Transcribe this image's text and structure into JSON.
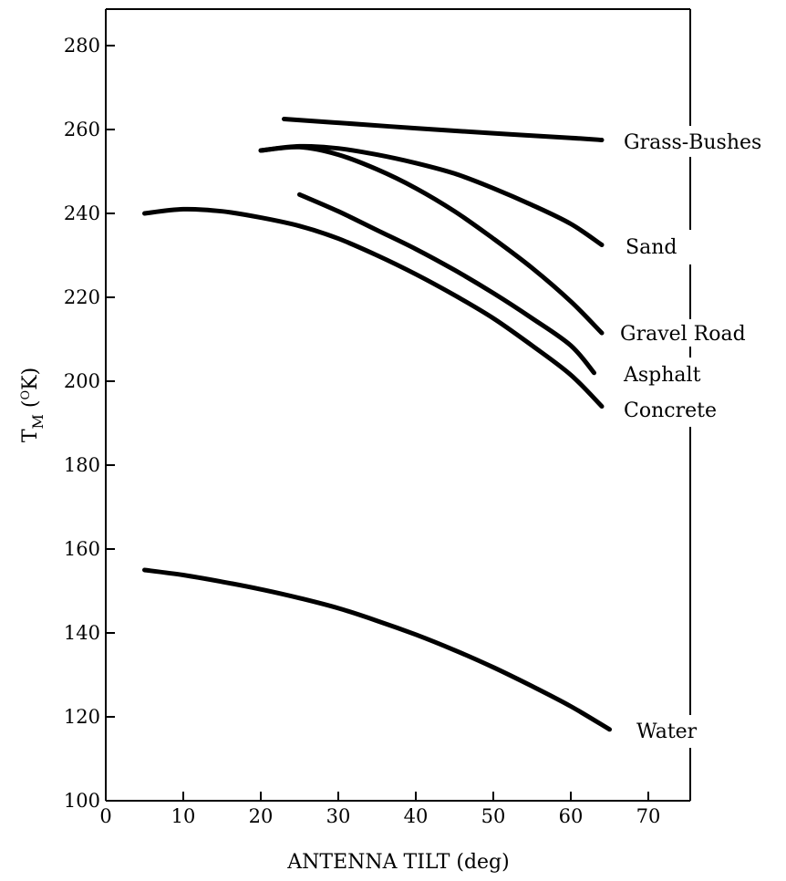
{
  "chart_data": {
    "type": "line",
    "title": "",
    "xlabel": "ANTENNA TILT (deg)",
    "ylabel": {
      "main": "T",
      "subscript": "M",
      "unit_open": " (",
      "unit_superscript": "O",
      "unit_close": "K)"
    },
    "xlim": [
      0,
      75
    ],
    "ylim": [
      100,
      290
    ],
    "xticks": [
      0,
      10,
      20,
      30,
      40,
      50,
      60,
      70
    ],
    "xtick_labels": [
      "0",
      "10",
      "20",
      "30",
      "40",
      "50",
      "60",
      "70"
    ],
    "yticks": [
      100,
      120,
      140,
      160,
      180,
      200,
      220,
      240,
      260,
      280
    ],
    "ytick_labels": [
      "100",
      "120",
      "140",
      "160",
      "180",
      "200",
      "220",
      "240",
      "260",
      "280"
    ],
    "grid": false,
    "series": [
      {
        "name": "Grass-Bushes",
        "x": [
          23,
          30,
          40,
          50,
          60,
          64
        ],
        "y": [
          262.5,
          261.6,
          260.3,
          259.1,
          258.0,
          257.5
        ]
      },
      {
        "name": "Sand",
        "x": [
          20,
          25,
          30,
          35,
          40,
          45,
          50,
          55,
          60,
          64
        ],
        "y": [
          255,
          256,
          255.5,
          254,
          252,
          249.5,
          246,
          242,
          237.5,
          232.5
        ]
      },
      {
        "name": "Gravel Road",
        "x": [
          20,
          25,
          30,
          35,
          40,
          45,
          50,
          55,
          60,
          64
        ],
        "y": [
          255,
          255.8,
          254,
          250.5,
          246,
          240.5,
          234,
          227,
          219,
          211.5
        ]
      },
      {
        "name": "Asphalt",
        "x": [
          25,
          30,
          35,
          40,
          45,
          50,
          55,
          60,
          63
        ],
        "y": [
          244.5,
          240.5,
          236,
          231.5,
          226.5,
          221,
          215,
          208.5,
          202
        ]
      },
      {
        "name": "Concrete",
        "x": [
          5,
          10,
          15,
          20,
          25,
          30,
          35,
          40,
          45,
          50,
          55,
          60,
          64
        ],
        "y": [
          240,
          241,
          240.5,
          239,
          237,
          234,
          230,
          225.5,
          220.5,
          215,
          208.5,
          201.5,
          194
        ]
      },
      {
        "name": "Water",
        "x": [
          5,
          10,
          15,
          20,
          25,
          30,
          35,
          40,
          45,
          50,
          55,
          60,
          65
        ],
        "y": [
          155,
          153.8,
          152.2,
          150.4,
          148.3,
          145.9,
          142.9,
          139.6,
          135.9,
          131.8,
          127.3,
          122.5,
          117
        ]
      }
    ]
  }
}
